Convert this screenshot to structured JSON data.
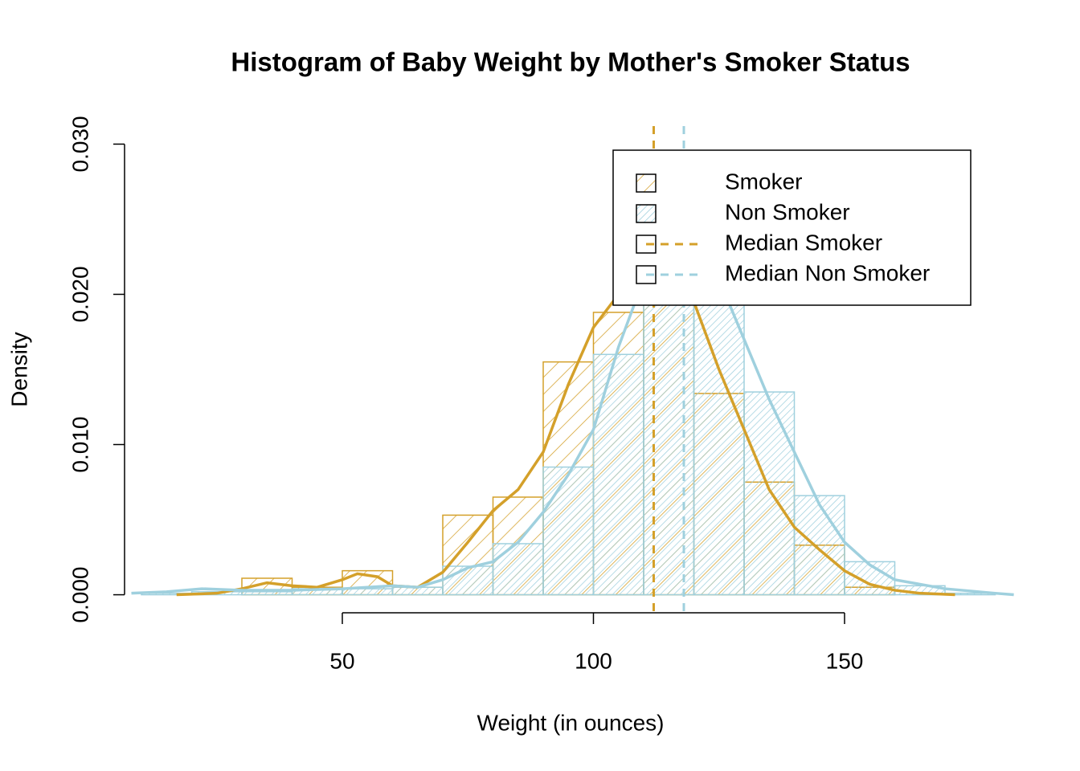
{
  "chart_data": {
    "type": "histogram",
    "title": "Histogram of Baby Weight by Mother's Smoker Status",
    "xlabel": "Weight (in ounces)",
    "ylabel": "Density",
    "xlim": [
      6.64,
      183.76
    ],
    "ylim": [
      -0.0012,
      0.0312
    ],
    "xticks": [
      50,
      100,
      150
    ],
    "yticks": [
      {
        "value": 0,
        "label": "0.000"
      },
      {
        "value": 0.01,
        "label": "0.010"
      },
      {
        "value": 0.02,
        "label": "0.020"
      },
      {
        "value": 0.03,
        "label": "0.030"
      }
    ],
    "legend": "topright",
    "series": [
      {
        "name": "Smoker",
        "color": "#d4a02a",
        "bins": [
          30,
          40,
          50,
          60,
          70,
          80,
          90,
          100,
          110,
          120,
          130,
          140,
          150,
          160
        ],
        "values": [
          0.0011,
          0.0005,
          0.0016,
          0.0005,
          0.0053,
          0.0065,
          0.0155,
          0.0188,
          0.0225,
          0.0134,
          0.0075,
          0.0033,
          0.0005
        ],
        "density": {
          "x": [
            17,
            25,
            30,
            35,
            40,
            45,
            50,
            53,
            57,
            60,
            65,
            70,
            75,
            80,
            85,
            90,
            95,
            100,
            105,
            110,
            113,
            117,
            120,
            125,
            130,
            135,
            140,
            145,
            150,
            155,
            160,
            165,
            172
          ],
          "values": [
            0,
            0.0001,
            0.0004,
            0.0008,
            0.0006,
            0.0005,
            0.001,
            0.0014,
            0.0012,
            0.0006,
            0.0005,
            0.0015,
            0.0035,
            0.0056,
            0.007,
            0.0095,
            0.014,
            0.0178,
            0.02,
            0.0228,
            0.024,
            0.0232,
            0.0195,
            0.015,
            0.011,
            0.007,
            0.0045,
            0.003,
            0.0016,
            0.0007,
            0.0003,
            0.0001,
            0
          ]
        }
      },
      {
        "name": "Non Smoker",
        "color": "#9fd0de",
        "bins": [
          10,
          20,
          30,
          40,
          50,
          60,
          70,
          80,
          90,
          100,
          110,
          120,
          130,
          140,
          150,
          160,
          170,
          180
        ],
        "values": [
          0.0001,
          0.0002,
          0.0002,
          0.0004,
          0.0004,
          0.0005,
          0.0019,
          0.0034,
          0.0085,
          0.016,
          0.0245,
          0.0196,
          0.0135,
          0.0066,
          0.0022,
          0.0006,
          0.0001
        ],
        "density": {
          "x": [
            8,
            15,
            22,
            30,
            40,
            50,
            60,
            65,
            70,
            75,
            80,
            85,
            90,
            95,
            100,
            105,
            110,
            115,
            120,
            125,
            130,
            135,
            140,
            145,
            150,
            155,
            160,
            170,
            180,
            183.7
          ],
          "values": [
            0.0001,
            0.0002,
            0.0004,
            0.0003,
            0.0003,
            0.0004,
            0.0006,
            0.0005,
            0.001,
            0.0018,
            0.0022,
            0.0035,
            0.0055,
            0.008,
            0.011,
            0.0165,
            0.021,
            0.0235,
            0.0235,
            0.021,
            0.017,
            0.013,
            0.0095,
            0.006,
            0.0035,
            0.002,
            0.001,
            0.0004,
            0.0001,
            0
          ]
        }
      }
    ],
    "medians": [
      {
        "name": "Median Smoker",
        "value": 112,
        "color": "#d4a02a"
      },
      {
        "name": "Median Non Smoker",
        "value": 118,
        "color": "#9fd0de"
      }
    ]
  }
}
